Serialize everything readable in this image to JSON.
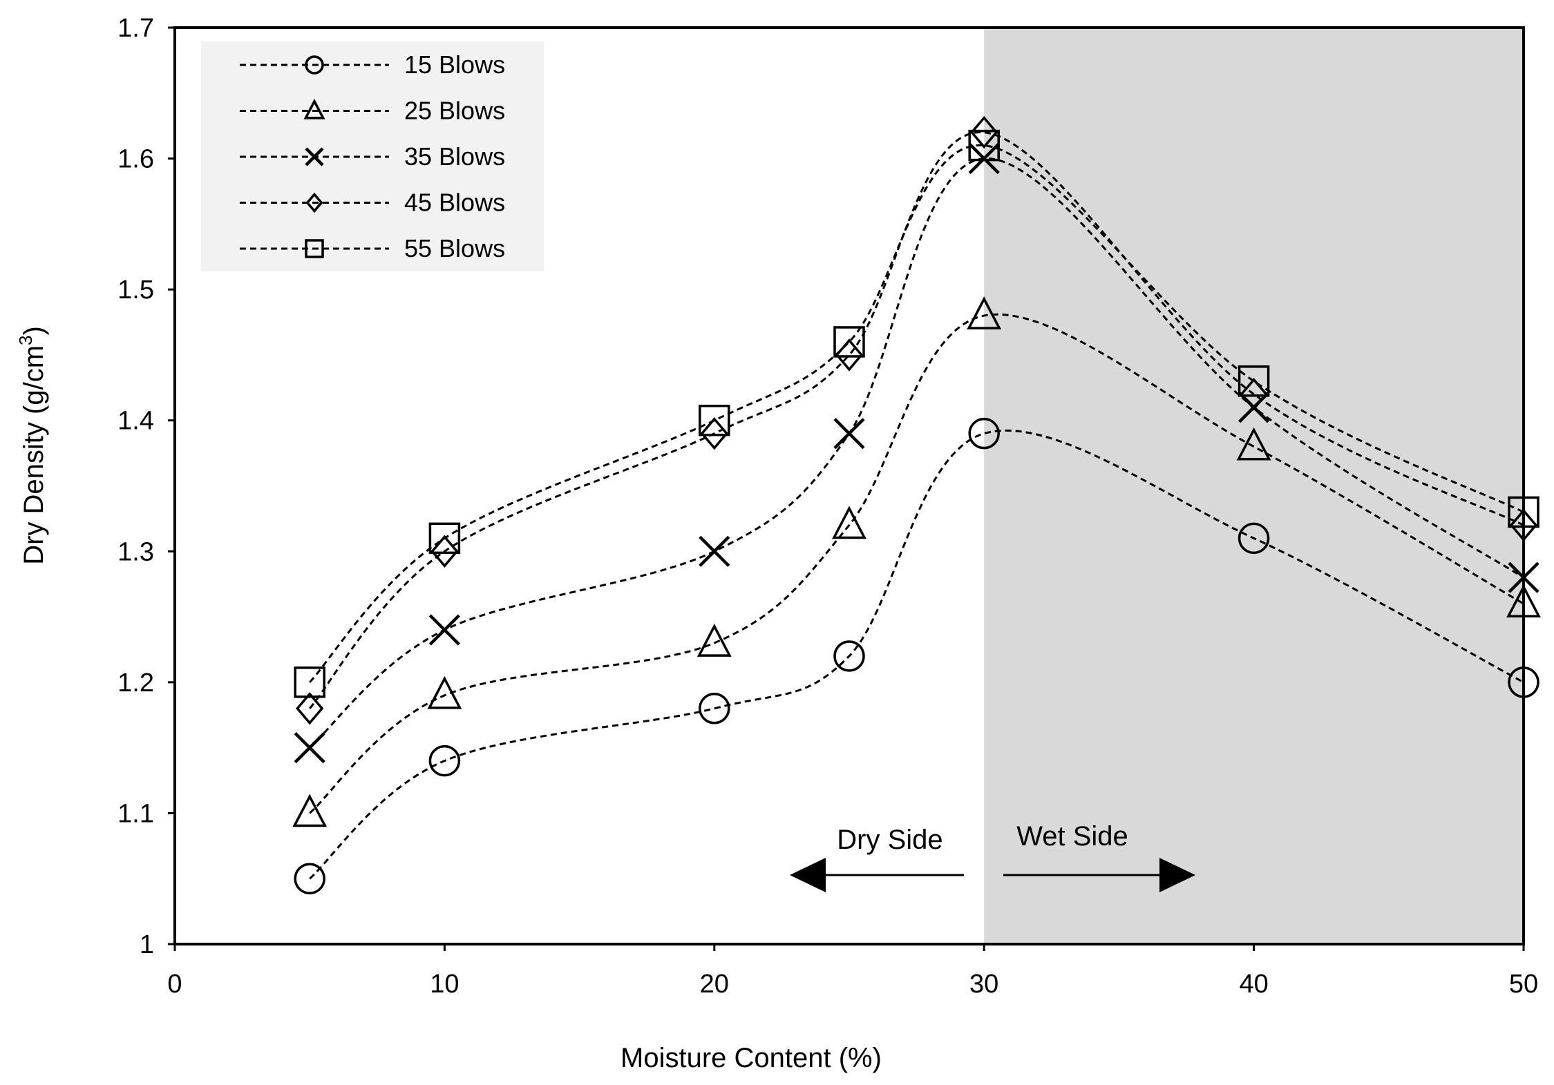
{
  "chart_data": {
    "type": "line",
    "xlabel": "Moisture Content (%)",
    "ylabel_main": "Dry Density  (g/cm",
    "ylabel_sup": "3",
    "ylabel_close": ")",
    "xlim": [
      0,
      50
    ],
    "ylim": [
      1.0,
      1.7
    ],
    "x_ticks": [
      0,
      10,
      20,
      30,
      40,
      50
    ],
    "x_tick_labels": [
      "0",
      "10",
      "20",
      "30",
      "40",
      "50"
    ],
    "y_ticks": [
      1.0,
      1.1,
      1.2,
      1.3,
      1.4,
      1.5,
      1.6,
      1.7
    ],
    "y_tick_labels": [
      "1",
      "1.1",
      "1.2",
      "1.3",
      "1.4",
      "1.5",
      "1.6",
      "1.7"
    ],
    "grid": false,
    "legend_position": "top-left",
    "shaded_region": {
      "x_from": 30,
      "x_to": 50,
      "color": "#d9d9d9"
    },
    "x": [
      5,
      10,
      20,
      25,
      30,
      40,
      50
    ],
    "series": [
      {
        "name": "15 Blows",
        "marker": "circle",
        "values": [
          1.05,
          1.14,
          1.18,
          1.22,
          1.39,
          1.31,
          1.2
        ]
      },
      {
        "name": "25 Blows",
        "marker": "triangle",
        "values": [
          1.1,
          1.19,
          1.23,
          1.32,
          1.48,
          1.38,
          1.26
        ]
      },
      {
        "name": "35 Blows",
        "marker": "x",
        "values": [
          1.15,
          1.24,
          1.3,
          1.39,
          1.6,
          1.41,
          1.28
        ]
      },
      {
        "name": "45 Blows",
        "marker": "diamond",
        "values": [
          1.18,
          1.3,
          1.39,
          1.45,
          1.62,
          1.42,
          1.32
        ]
      },
      {
        "name": "55 Blows",
        "marker": "square",
        "values": [
          1.2,
          1.31,
          1.4,
          1.46,
          1.61,
          1.43,
          1.33
        ]
      }
    ],
    "annotations": {
      "dry_side": "Dry Side",
      "wet_side": "Wet Side"
    },
    "colors": {
      "line": "#000000",
      "legend_bg": "#f2f2f2",
      "shade": "#d9d9d9"
    }
  }
}
